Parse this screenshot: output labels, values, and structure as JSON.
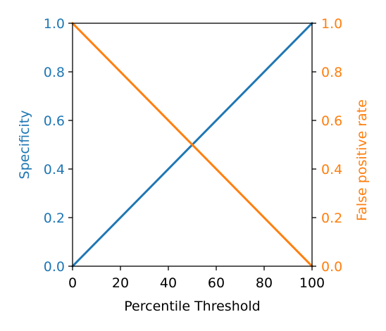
{
  "chart_data": {
    "type": "line",
    "xlabel": "Percentile Threshold",
    "xlim": [
      0,
      100
    ],
    "xticks": [
      "0",
      "20",
      "40",
      "60",
      "80",
      "100"
    ],
    "left_axis": {
      "label": "Specificity",
      "color": "#1f77b4",
      "ylim": [
        0.0,
        1.0
      ],
      "ticks": [
        "0.0",
        "0.2",
        "0.4",
        "0.6",
        "0.8",
        "1.0"
      ]
    },
    "right_axis": {
      "label": "False positive rate",
      "color": "#ff7f0e",
      "ylim": [
        0.0,
        1.0
      ],
      "ticks": [
        "0.0",
        "0.2",
        "0.4",
        "0.6",
        "0.8",
        "1.0"
      ]
    },
    "series": [
      {
        "axis": "left",
        "color": "#1f77b4",
        "x": [
          0,
          100
        ],
        "y": [
          0.0,
          1.0
        ]
      },
      {
        "axis": "right",
        "color": "#ff7f0e",
        "x": [
          0,
          100
        ],
        "y": [
          1.0,
          0.0
        ]
      }
    ]
  }
}
